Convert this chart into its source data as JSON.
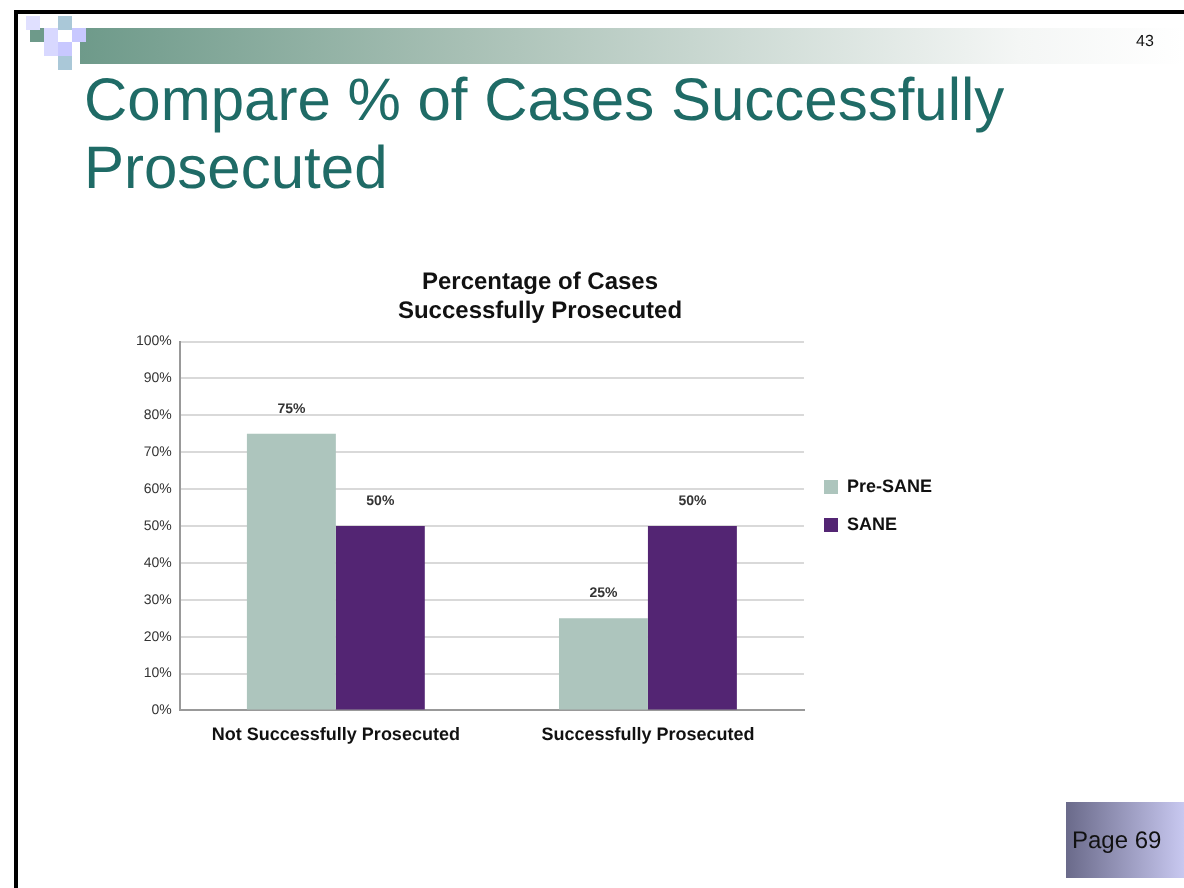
{
  "chart_data": {
    "type": "bar",
    "title": "Percentage of Cases\nSuccessfully Prosecuted",
    "annotations": [
      "Compare % of Cases Successfully Prosecuted",
      "43",
      "Page 69"
    ],
    "categories": [
      "Not Successfully Prosecuted",
      "Successfully Prosecuted"
    ],
    "series": [
      {
        "name": "Pre-SANE",
        "color": "#adc5bd",
        "values": [
          75,
          25
        ],
        "value_labels": [
          "75%",
          "25%"
        ]
      },
      {
        "name": "SANE",
        "color": "#532573",
        "values": [
          50,
          50
        ],
        "value_labels": [
          "50%",
          "50%"
        ]
      }
    ],
    "ylim": [
      0,
      100
    ],
    "yticks": [
      {
        "value": 0,
        "label": "0%"
      },
      {
        "value": 10,
        "label": "10%"
      },
      {
        "value": 20,
        "label": "20%"
      },
      {
        "value": 30,
        "label": "30%"
      },
      {
        "value": 40,
        "label": "40%"
      },
      {
        "value": 50,
        "label": "50%"
      },
      {
        "value": 60,
        "label": "60%"
      },
      {
        "value": 70,
        "label": "70%"
      },
      {
        "value": 80,
        "label": "80%"
      },
      {
        "value": 90,
        "label": "90%"
      },
      {
        "value": 100,
        "label": "100%"
      }
    ],
    "grid": "y",
    "legend": "right"
  }
}
